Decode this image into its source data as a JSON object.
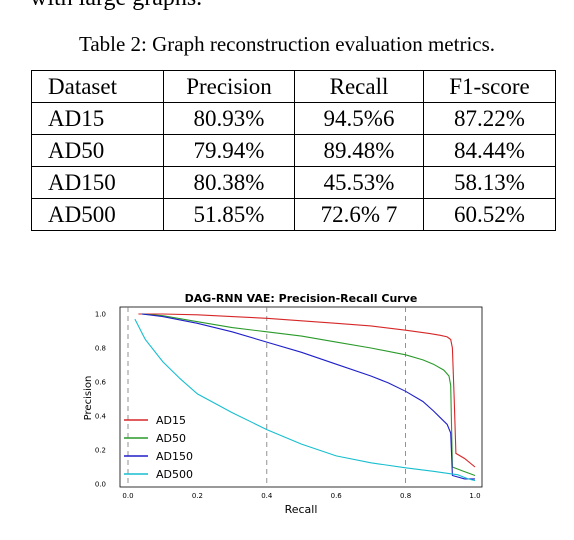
{
  "page": {
    "top_fragment": "with large graphs.",
    "table_caption": "Table 2: Graph reconstruction evaluation metrics."
  },
  "table": {
    "headers": [
      "Dataset",
      "Precision",
      "Recall",
      "F1-score"
    ],
    "rows": [
      [
        "AD15",
        "80.93%",
        "94.5%6",
        "87.22%"
      ],
      [
        "AD50",
        "79.94%",
        "89.48%",
        "84.44%"
      ],
      [
        "AD150",
        "80.38%",
        "45.53%",
        "58.13%"
      ],
      [
        "AD500",
        "51.85%",
        "72.6% 7",
        "60.52%"
      ]
    ]
  },
  "chart_data": {
    "type": "line",
    "title": "DAG-RNN VAE: Precision-Recall Curve",
    "xlabel": "Recall",
    "ylabel": "Precision",
    "xlim": [
      0.0,
      1.0
    ],
    "ylim": [
      0.0,
      1.0
    ],
    "x_ticks": [
      "0.0",
      "0.2",
      "0.4",
      "0.6",
      "0.8",
      "1.0"
    ],
    "y_ticks": [
      "0.0",
      "0.2",
      "0.4",
      "0.6",
      "0.8",
      "1.0"
    ],
    "vertical_dashed_lines": [
      0.0,
      0.4,
      0.8
    ],
    "legend_position": "lower-left",
    "series": [
      {
        "name": "AD15",
        "color": "#d62728",
        "points": [
          [
            0.03,
            1.0
          ],
          [
            0.1,
            1.0
          ],
          [
            0.2,
            0.995
          ],
          [
            0.3,
            0.985
          ],
          [
            0.4,
            0.975
          ],
          [
            0.5,
            0.96
          ],
          [
            0.6,
            0.945
          ],
          [
            0.7,
            0.93
          ],
          [
            0.8,
            0.905
          ],
          [
            0.87,
            0.885
          ],
          [
            0.9,
            0.875
          ],
          [
            0.92,
            0.865
          ],
          [
            0.93,
            0.85
          ],
          [
            0.935,
            0.8
          ],
          [
            0.94,
            0.5
          ],
          [
            0.945,
            0.18
          ],
          [
            0.97,
            0.15
          ],
          [
            1.0,
            0.1
          ]
        ]
      },
      {
        "name": "AD50",
        "color": "#2a9a2a",
        "points": [
          [
            0.04,
            1.0
          ],
          [
            0.1,
            0.99
          ],
          [
            0.2,
            0.955
          ],
          [
            0.3,
            0.92
          ],
          [
            0.4,
            0.895
          ],
          [
            0.5,
            0.87
          ],
          [
            0.6,
            0.835
          ],
          [
            0.7,
            0.8
          ],
          [
            0.8,
            0.76
          ],
          [
            0.85,
            0.73
          ],
          [
            0.88,
            0.705
          ],
          [
            0.91,
            0.67
          ],
          [
            0.925,
            0.635
          ],
          [
            0.93,
            0.58
          ],
          [
            0.935,
            0.1
          ],
          [
            0.96,
            0.08
          ],
          [
            1.0,
            0.05
          ]
        ]
      },
      {
        "name": "AD150",
        "color": "#1f1fc8",
        "points": [
          [
            0.04,
            1.0
          ],
          [
            0.1,
            0.985
          ],
          [
            0.2,
            0.945
          ],
          [
            0.3,
            0.895
          ],
          [
            0.4,
            0.835
          ],
          [
            0.5,
            0.775
          ],
          [
            0.6,
            0.705
          ],
          [
            0.7,
            0.635
          ],
          [
            0.75,
            0.595
          ],
          [
            0.8,
            0.545
          ],
          [
            0.85,
            0.485
          ],
          [
            0.88,
            0.43
          ],
          [
            0.9,
            0.39
          ],
          [
            0.92,
            0.35
          ],
          [
            0.93,
            0.3
          ],
          [
            0.935,
            0.05
          ],
          [
            0.97,
            0.03
          ],
          [
            1.0,
            0.03
          ]
        ]
      },
      {
        "name": "AD500",
        "color": "#17becf",
        "points": [
          [
            0.02,
            0.97
          ],
          [
            0.05,
            0.85
          ],
          [
            0.1,
            0.72
          ],
          [
            0.15,
            0.62
          ],
          [
            0.2,
            0.53
          ],
          [
            0.3,
            0.42
          ],
          [
            0.4,
            0.32
          ],
          [
            0.5,
            0.235
          ],
          [
            0.6,
            0.165
          ],
          [
            0.7,
            0.125
          ],
          [
            0.8,
            0.095
          ],
          [
            0.88,
            0.075
          ],
          [
            0.93,
            0.06
          ],
          [
            0.95,
            0.055
          ],
          [
            0.98,
            0.03
          ],
          [
            1.0,
            0.02
          ]
        ]
      }
    ]
  }
}
